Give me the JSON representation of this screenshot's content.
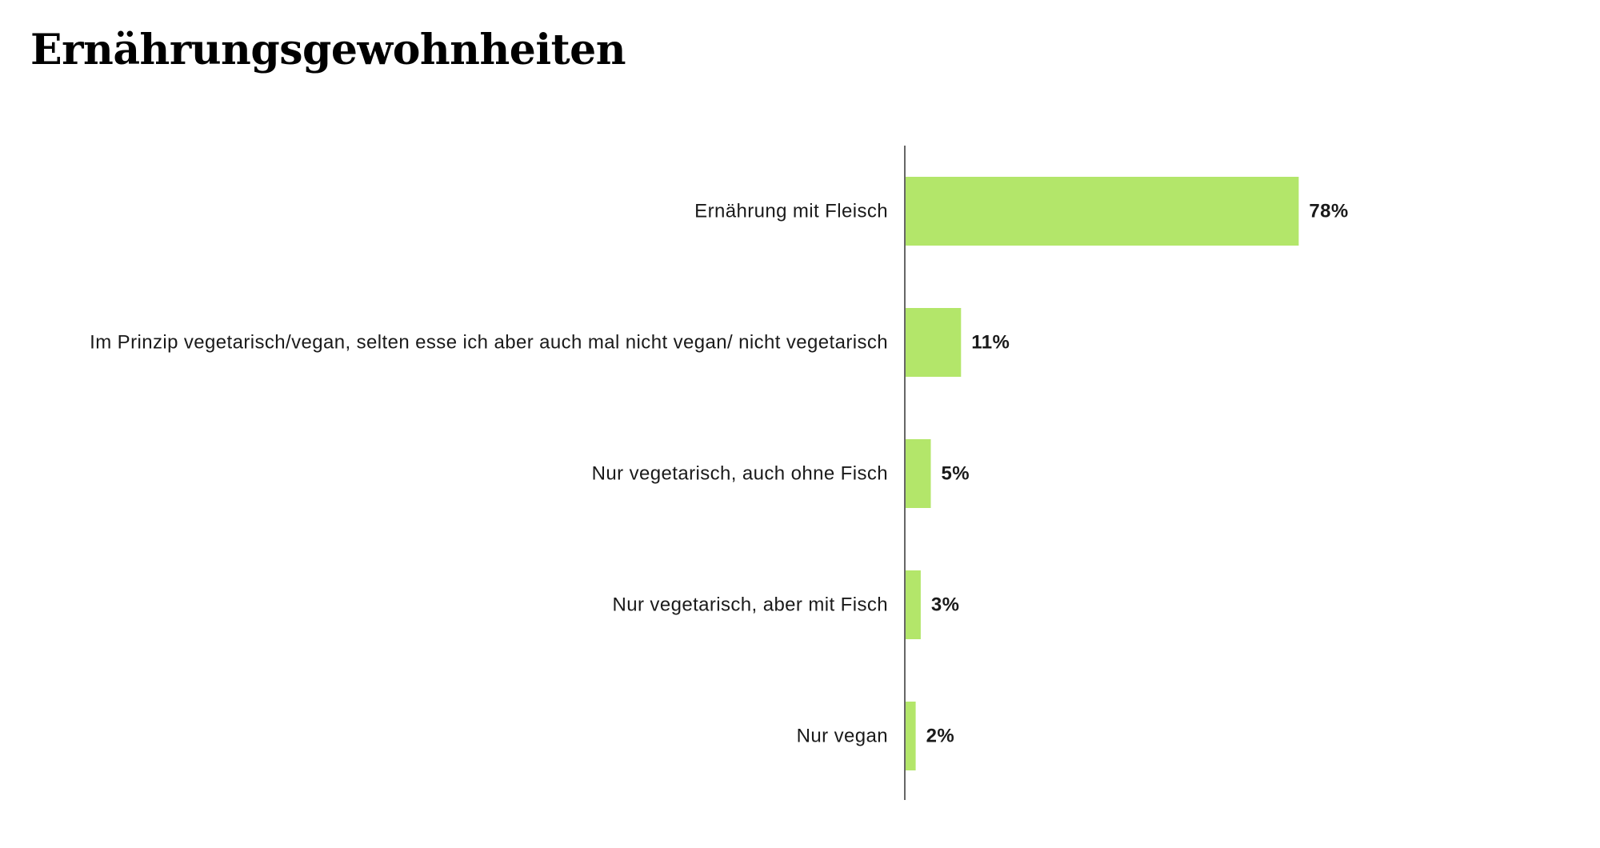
{
  "chart_data": {
    "type": "bar",
    "orientation": "horizontal",
    "title": "Ernährungsgewohnheiten",
    "categories": [
      "Ernährung mit Fleisch",
      "Im Prinzip vegetarisch/vegan, selten esse ich aber auch mal nicht vegan/ nicht vegetarisch",
      "Nur vegetarisch, auch ohne Fisch",
      "Nur vegetarisch, aber mit Fisch",
      "Nur vegan"
    ],
    "values": [
      78,
      11,
      5,
      3,
      2
    ],
    "value_labels": [
      "78%",
      "11%",
      "5%",
      "3%",
      "2%"
    ],
    "unit": "%",
    "xlim": [
      0,
      100
    ],
    "bar_color": "#b3e66a",
    "axis_color": "#333333",
    "grid": false,
    "legend": "none"
  }
}
